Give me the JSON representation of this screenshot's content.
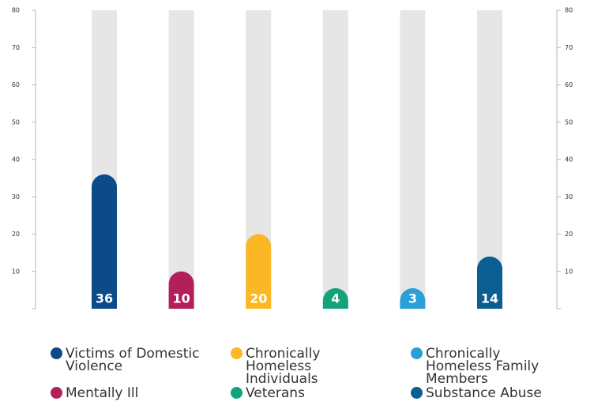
{
  "chart_data": {
    "type": "bar",
    "categories": [
      "Victims of Domestic Violence",
      "Mentally Ill",
      "Chronically Homeless Individuals",
      "Veterans",
      "Chronically Homeless Family Members",
      "Substance Abuse"
    ],
    "values": [
      36,
      10,
      20,
      4,
      3,
      14
    ],
    "colors": [
      "#0d4a8a",
      "#b31f5b",
      "#fbb726",
      "#12a37a",
      "#2a9fd8",
      "#0a5e91"
    ],
    "ylim": [
      0,
      80
    ],
    "yticks": [
      10,
      20,
      30,
      40,
      50,
      60,
      70,
      80
    ]
  }
}
